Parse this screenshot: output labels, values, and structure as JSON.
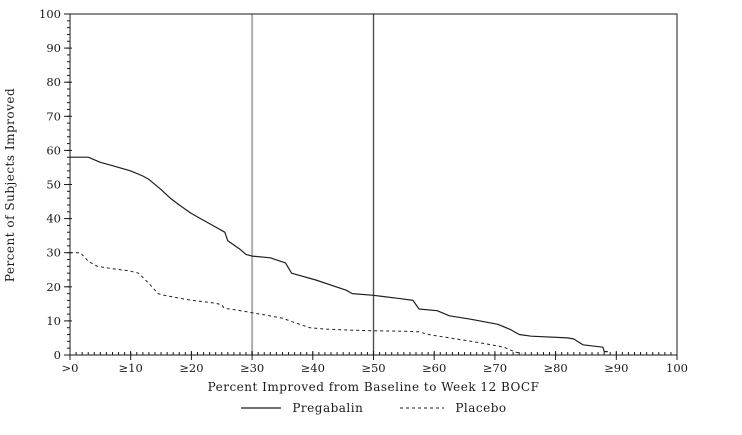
{
  "chart_data": {
    "type": "line",
    "title": "",
    "xlabel": "Percent Improved from Baseline to Week 12 BOCF",
    "ylabel": "Percent of Subjects Improved",
    "xlim": [
      0,
      100
    ],
    "ylim": [
      0,
      100
    ],
    "grid": false,
    "legend_position": "bottom-center",
    "axis_color": "#1a1a1a",
    "x_ticks": [
      {
        "v": 0,
        "label": ">0"
      },
      {
        "v": 10,
        "label": "≥10"
      },
      {
        "v": 20,
        "label": "≥20"
      },
      {
        "v": 30,
        "label": "≥30"
      },
      {
        "v": 40,
        "label": "≥40"
      },
      {
        "v": 50,
        "label": "≥50"
      },
      {
        "v": 60,
        "label": "≥60"
      },
      {
        "v": 70,
        "label": "≥70"
      },
      {
        "v": 80,
        "label": "≥80"
      },
      {
        "v": 90,
        "label": "≥90"
      },
      {
        "v": 100,
        "label": "100"
      }
    ],
    "y_ticks": [
      {
        "v": 0,
        "label": "0"
      },
      {
        "v": 10,
        "label": "10"
      },
      {
        "v": 20,
        "label": "20"
      },
      {
        "v": 30,
        "label": "30"
      },
      {
        "v": 40,
        "label": "40"
      },
      {
        "v": 50,
        "label": "50"
      },
      {
        "v": 60,
        "label": "60"
      },
      {
        "v": 70,
        "label": "70"
      },
      {
        "v": 80,
        "label": "80"
      },
      {
        "v": 90,
        "label": "90"
      },
      {
        "v": 100,
        "label": "100"
      }
    ],
    "x_minor_step": 1,
    "y_minor_step": 2,
    "reference_lines_x": [
      {
        "x": 30,
        "color": "#aeaeae",
        "width": 2
      },
      {
        "x": 50,
        "color": "#4f4f4f",
        "width": 1.4
      }
    ],
    "series": [
      {
        "name": "Pregabalin",
        "style": "solid",
        "color": "#1f1f1f",
        "points": [
          [
            0,
            58
          ],
          [
            3,
            58
          ],
          [
            5,
            56.5
          ],
          [
            7,
            55.5
          ],
          [
            10,
            54
          ],
          [
            12,
            52.5
          ],
          [
            13,
            51.5
          ],
          [
            15,
            48.5
          ],
          [
            16.5,
            46
          ],
          [
            18,
            44
          ],
          [
            20,
            41.5
          ],
          [
            21.5,
            40
          ],
          [
            23.5,
            38
          ],
          [
            25.5,
            36
          ],
          [
            26,
            33.5
          ],
          [
            28,
            31
          ],
          [
            29,
            29.5
          ],
          [
            30,
            29
          ],
          [
            33,
            28.5
          ],
          [
            35.5,
            27
          ],
          [
            36.5,
            24
          ],
          [
            40.5,
            22
          ],
          [
            45.5,
            19
          ],
          [
            46.5,
            18
          ],
          [
            50,
            17.5
          ],
          [
            54.5,
            16.5
          ],
          [
            56.5,
            16
          ],
          [
            57.5,
            13.5
          ],
          [
            60.5,
            13
          ],
          [
            62.5,
            11.5
          ],
          [
            66,
            10.5
          ],
          [
            70.5,
            9
          ],
          [
            72.5,
            7.5
          ],
          [
            74,
            6
          ],
          [
            76,
            5.5
          ],
          [
            82,
            5
          ],
          [
            83,
            4.7
          ],
          [
            84.5,
            3
          ],
          [
            87.8,
            2.3
          ],
          [
            88,
            1
          ],
          [
            88.6,
            1
          ]
        ]
      },
      {
        "name": "Placebo",
        "style": "dashed",
        "color": "#1f1f1f",
        "points": [
          [
            0,
            30
          ],
          [
            1.7,
            30
          ],
          [
            3,
            27.5
          ],
          [
            4.5,
            26
          ],
          [
            7,
            25.3
          ],
          [
            9.7,
            24.7
          ],
          [
            11.3,
            24
          ],
          [
            13,
            21
          ],
          [
            14.5,
            18
          ],
          [
            15.5,
            17.5
          ],
          [
            19.5,
            16.2
          ],
          [
            24,
            15.2
          ],
          [
            25,
            14.7
          ],
          [
            25.4,
            13.7
          ],
          [
            27,
            13.3
          ],
          [
            30,
            12.4
          ],
          [
            32,
            11.8
          ],
          [
            35,
            10.8
          ],
          [
            37,
            9.5
          ],
          [
            39.5,
            8
          ],
          [
            42,
            7.6
          ],
          [
            46,
            7.3
          ],
          [
            50,
            7.1
          ],
          [
            54,
            7
          ],
          [
            57.5,
            6.8
          ],
          [
            59,
            6
          ],
          [
            62.5,
            5
          ],
          [
            65,
            4.3
          ],
          [
            67.5,
            3.6
          ],
          [
            70,
            2.8
          ],
          [
            71.5,
            2.3
          ],
          [
            72.5,
            1.5
          ],
          [
            73.5,
            0.8
          ],
          [
            74.5,
            0.5
          ]
        ]
      }
    ]
  }
}
